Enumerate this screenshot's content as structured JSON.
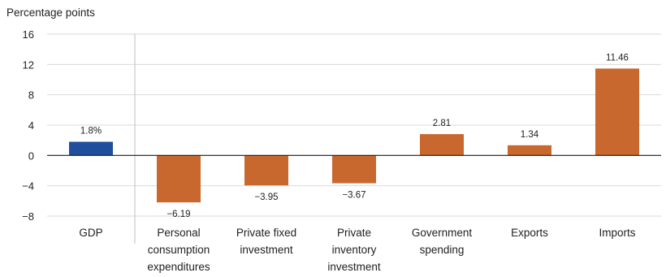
{
  "chart_data": {
    "type": "bar",
    "ylabel": "Percentage points",
    "ylim": [
      -8,
      16
    ],
    "yticks": [
      16,
      12,
      8,
      4,
      0,
      -4,
      -8
    ],
    "ytick_labels": [
      "16",
      "12",
      "8",
      "4",
      "0",
      "−4",
      "−8"
    ],
    "grid": true,
    "categories": [
      [
        "GDP"
      ],
      [
        "Personal",
        "consumption",
        "expenditures"
      ],
      [
        "Private fixed",
        "investment"
      ],
      [
        "Private",
        "inventory",
        "investment"
      ],
      [
        "Government",
        "spending"
      ],
      [
        "Exports"
      ],
      [
        "Imports"
      ]
    ],
    "values": [
      1.8,
      -6.19,
      -3.95,
      -3.67,
      2.81,
      1.34,
      11.46
    ],
    "data_labels": [
      "1.8%",
      "−6.19",
      "−3.95",
      "−3.67",
      "2.81",
      "1.34",
      "11.46"
    ],
    "colors": [
      "#1F4E9C",
      "#C8682E",
      "#C8682E",
      "#C8682E",
      "#C8682E",
      "#C8682E",
      "#C8682E"
    ]
  }
}
